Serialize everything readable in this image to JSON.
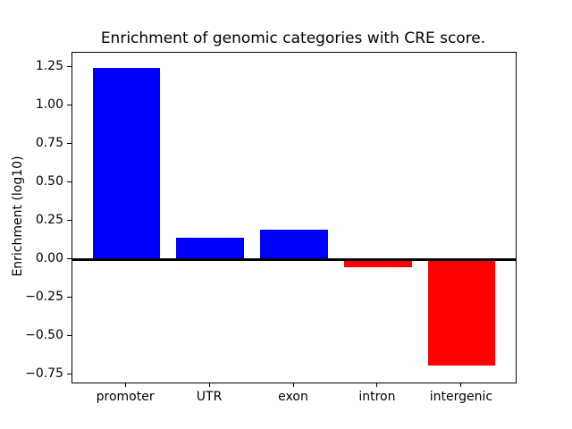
{
  "chart_data": {
    "type": "bar",
    "title": "Enrichment of genomic categories with CRE score.",
    "xlabel": "",
    "ylabel": "Enrichment (log10)",
    "categories": [
      "promoter",
      "UTR",
      "exon",
      "intron",
      "intergenic"
    ],
    "values": [
      1.24,
      0.14,
      0.19,
      -0.05,
      -0.69
    ],
    "bar_colors": [
      "#0000ff",
      "#0000ff",
      "#0000ff",
      "#ff0000",
      "#ff0000"
    ],
    "positive_color": "#0000ff",
    "negative_color": "#ff0000",
    "ylim": [
      -0.8,
      1.34
    ],
    "xlim": [
      -0.64,
      4.64
    ],
    "bar_width": 0.8,
    "yticks": [
      1.25,
      1.0,
      0.75,
      0.5,
      0.25,
      0.0,
      -0.25,
      -0.5,
      -0.75
    ],
    "ytick_labels": [
      "1.25",
      "1.00",
      "0.75",
      "0.50",
      "0.25",
      "0.00",
      "−0.25",
      "−0.50",
      "−0.75"
    ],
    "zero_line": true,
    "grid": false,
    "legend": "none",
    "axis_color": "#000000",
    "background_color": "#ffffff"
  }
}
